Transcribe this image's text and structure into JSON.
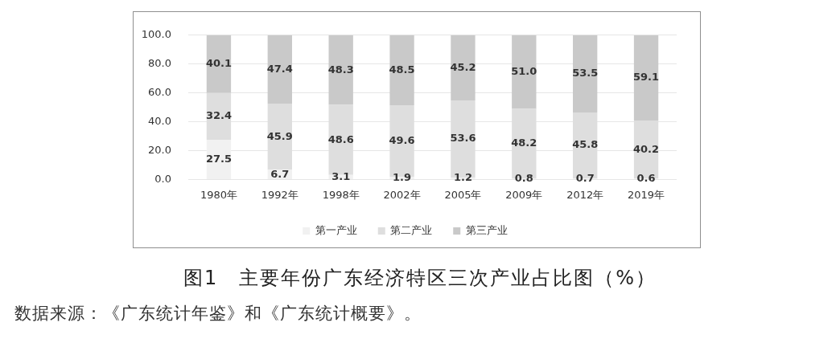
{
  "chart_data": {
    "type": "bar",
    "stacked": true,
    "title": "图1　主要年份广东经济特区三次产业占比图（%）",
    "annotations": [
      "数据来源：《广东统计年鉴》和《广东统计概要》。"
    ],
    "categories": [
      "1980年",
      "1992年",
      "1998年",
      "2002年",
      "2005年",
      "2009年",
      "2012年",
      "2019年"
    ],
    "series": [
      {
        "name": "第一产业",
        "color": "#f1f1f1",
        "values": [
          27.5,
          6.7,
          3.1,
          1.9,
          1.2,
          0.8,
          0.7,
          0.6
        ],
        "value_labels": [
          "27.5",
          "6.7",
          "3.1",
          "1.9",
          "1.2",
          "0.8",
          "0.7",
          "0.6"
        ]
      },
      {
        "name": "第二产业",
        "color": "#dedede",
        "values": [
          32.4,
          45.9,
          48.6,
          49.6,
          53.6,
          48.2,
          45.8,
          40.2
        ],
        "value_labels": [
          "32.4",
          "45.9",
          "48.6",
          "49.6",
          "53.6",
          "48.2",
          "45.8",
          "40.2"
        ]
      },
      {
        "name": "第三产业",
        "color": "#c9c9c9",
        "values": [
          40.1,
          47.4,
          48.3,
          48.5,
          45.2,
          51.0,
          53.5,
          59.1
        ],
        "value_labels": [
          "40.1",
          "47.4",
          "48.3",
          "48.5",
          "45.2",
          "51.0",
          "53.5",
          "59.1"
        ]
      }
    ],
    "ylim": [
      0,
      100
    ],
    "yticks": [
      {
        "value": 0,
        "label": "0.0"
      },
      {
        "value": 20,
        "label": "20.0"
      },
      {
        "value": 40,
        "label": "40.0"
      },
      {
        "value": 60,
        "label": "60.0"
      },
      {
        "value": 80,
        "label": "80.0"
      },
      {
        "value": 100,
        "label": "100.0"
      }
    ],
    "grid": "y",
    "legend": "bottom"
  }
}
